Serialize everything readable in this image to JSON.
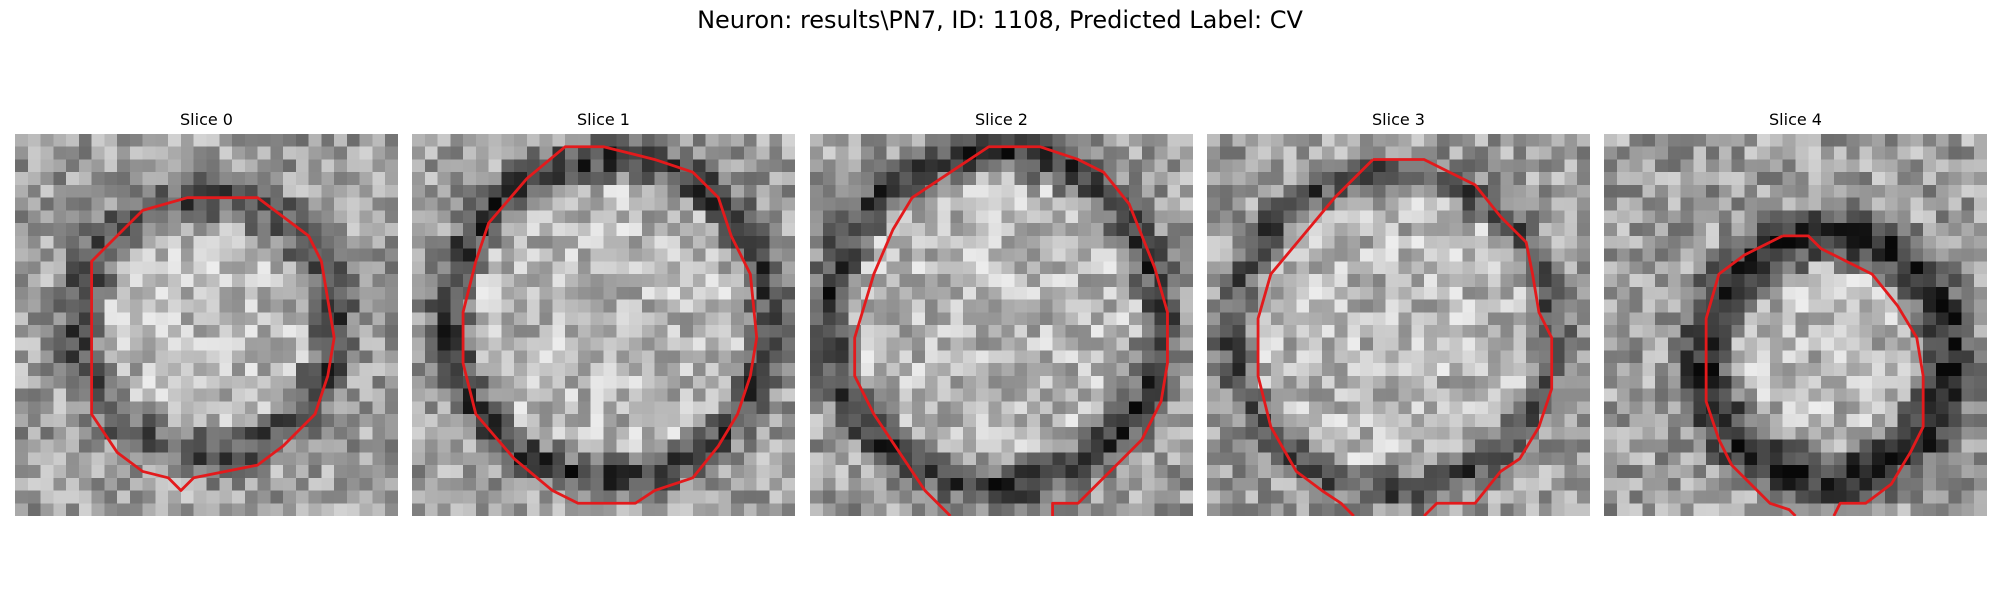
{
  "figure": {
    "title": "Neuron: results\\PN7, ID: 1108, Predicted Label: CV"
  },
  "panels": [
    {
      "title": "Slice 0"
    },
    {
      "title": "Slice 1"
    },
    {
      "title": "Slice 2"
    },
    {
      "title": "Slice 3"
    },
    {
      "title": "Slice 4"
    }
  ],
  "colors": {
    "contour": "#e31a1c",
    "background": "#ffffff"
  },
  "image_style": "grayscale-pixelated-microscopy"
}
